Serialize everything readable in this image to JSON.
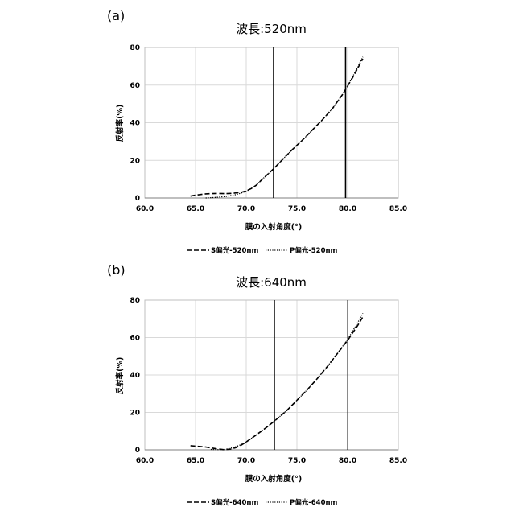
{
  "chart_data": [
    {
      "type": "line",
      "panel_label": "(a)",
      "title": "波長:520nm",
      "xlabel": "膜の入射角度(°)",
      "ylabel": "反射率(%)",
      "xlim": [
        60.0,
        85.0
      ],
      "ylim": [
        0,
        80
      ],
      "xticks": [
        "60.0",
        "65.0",
        "70.0",
        "75.0",
        "80.0",
        "85.0"
      ],
      "yticks": [
        "0",
        "20",
        "40",
        "60",
        "80"
      ],
      "grid": true,
      "legend_position": "bottom",
      "vlines": [
        72.7,
        79.8
      ],
      "series": [
        {
          "name": "S偏光-520nm",
          "style": "dashed",
          "x": [
            64.5,
            65.0,
            66.0,
            67.0,
            68.0,
            68.7,
            69.5,
            70.0,
            70.5,
            71.0,
            71.5,
            72.0,
            72.7,
            73.5,
            74.5,
            75.5,
            76.5,
            77.5,
            78.5,
            79.5,
            80.0,
            80.5,
            81.0,
            81.5
          ],
          "y": [
            1.0,
            1.5,
            2.2,
            2.4,
            2.3,
            2.5,
            3.0,
            3.8,
            5.0,
            6.8,
            9.5,
            12.0,
            15.5,
            20.0,
            25.5,
            30.5,
            36.0,
            41.5,
            47.5,
            55.0,
            59.5,
            64.0,
            69.0,
            74.0
          ]
        },
        {
          "name": "P偏光-520nm",
          "style": "dotted",
          "x": [
            66.0,
            67.0,
            68.0,
            69.0,
            69.5,
            70.0,
            70.5,
            71.0,
            71.5,
            72.0,
            72.7,
            73.5,
            74.5,
            75.5,
            76.5,
            77.5,
            78.5,
            79.5,
            80.0,
            80.5,
            81.0,
            81.5
          ],
          "y": [
            0.0,
            0.3,
            0.8,
            1.8,
            2.6,
            3.6,
            5.0,
            6.8,
            9.5,
            12.0,
            15.5,
            20.0,
            25.5,
            30.5,
            36.0,
            41.5,
            47.5,
            55.0,
            59.5,
            64.5,
            69.5,
            75.0
          ]
        }
      ]
    },
    {
      "type": "line",
      "panel_label": "(b)",
      "title": "波長:640nm",
      "xlabel": "膜の入射角度(°)",
      "ylabel": "反射率(%)",
      "xlim": [
        60.0,
        85.0
      ],
      "ylim": [
        0,
        80
      ],
      "xticks": [
        "60.0",
        "65.0",
        "70.0",
        "75.0",
        "80.0",
        "85.0"
      ],
      "yticks": [
        "0",
        "20",
        "40",
        "60",
        "80"
      ],
      "grid": true,
      "legend_position": "bottom",
      "vlines": [
        72.8,
        80.0
      ],
      "series": [
        {
          "name": "S偏光-640nm",
          "style": "dashed",
          "x": [
            64.5,
            65.0,
            66.0,
            67.0,
            67.8,
            68.5,
            69.0,
            69.5,
            70.0,
            71.0,
            72.0,
            72.8,
            74.0,
            75.0,
            76.0,
            77.0,
            78.0,
            79.0,
            80.0,
            80.5,
            81.0,
            81.5
          ],
          "y": [
            2.2,
            2.0,
            1.5,
            0.6,
            0.1,
            0.4,
            1.2,
            2.5,
            4.2,
            8.0,
            12.0,
            15.5,
            21.0,
            26.5,
            32.0,
            38.0,
            44.5,
            51.5,
            58.5,
            62.5,
            66.5,
            71.0
          ]
        },
        {
          "name": "P偏光-640nm",
          "style": "dotted",
          "x": [
            66.5,
            67.5,
            68.0,
            68.5,
            69.0,
            69.5,
            70.0,
            71.0,
            72.0,
            72.8,
            74.0,
            75.0,
            76.0,
            77.0,
            78.0,
            79.0,
            80.0,
            80.5,
            81.0,
            81.5
          ],
          "y": [
            0.2,
            0.1,
            0.3,
            0.9,
            1.7,
            2.8,
            4.2,
            8.0,
            12.0,
            15.5,
            21.0,
            26.5,
            32.0,
            38.0,
            44.5,
            51.5,
            59.0,
            63.5,
            68.0,
            73.0
          ]
        }
      ]
    }
  ]
}
